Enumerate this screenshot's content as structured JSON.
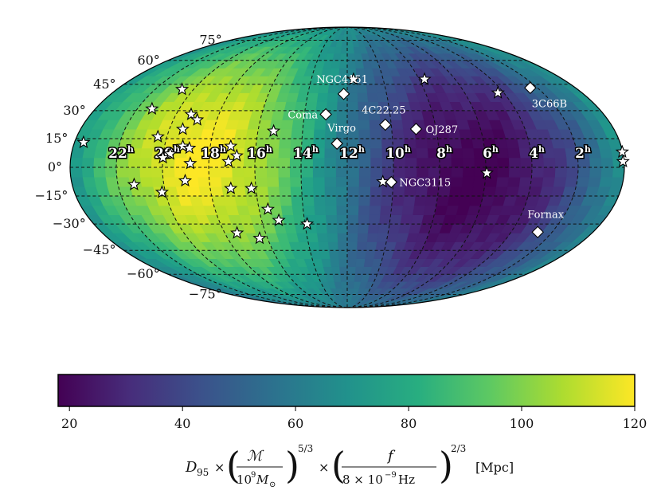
{
  "chart_data": {
    "type": "heatmap",
    "projection": "mollweide",
    "title": "",
    "colormap": "viridis",
    "color_range": [
      18,
      120
    ],
    "dec_grid_deg": [
      -75,
      -60,
      -45,
      -30,
      -15,
      0,
      15,
      30,
      45,
      60,
      75
    ],
    "ra_grid_hours": [
      22,
      20,
      18,
      16,
      14,
      12,
      10,
      8,
      6,
      4,
      2
    ],
    "dec_labels": [
      {
        "deg": 75,
        "text": "75°"
      },
      {
        "deg": 60,
        "text": "60°"
      },
      {
        "deg": 45,
        "text": "45°"
      },
      {
        "deg": 30,
        "text": "30°"
      },
      {
        "deg": 15,
        "text": "15°"
      },
      {
        "deg": 0,
        "text": "0°"
      },
      {
        "deg": -15,
        "text": "−15°"
      },
      {
        "deg": -30,
        "text": "−30°"
      },
      {
        "deg": -45,
        "text": "−45°"
      },
      {
        "deg": -60,
        "text": "−60°"
      },
      {
        "deg": -75,
        "text": "−75°"
      }
    ],
    "ra_labels": [
      {
        "hours": 22,
        "base": "22",
        "sup": "h"
      },
      {
        "hours": 20,
        "base": "20",
        "sup": "h"
      },
      {
        "hours": 18,
        "base": "18",
        "sup": "h"
      },
      {
        "hours": 16,
        "base": "16",
        "sup": "h"
      },
      {
        "hours": 14,
        "base": "14",
        "sup": "h"
      },
      {
        "hours": 12,
        "base": "12",
        "sup": "h"
      },
      {
        "hours": 10,
        "base": "10",
        "sup": "h"
      },
      {
        "hours": 8,
        "base": "8",
        "sup": "h"
      },
      {
        "hours": 6,
        "base": "6",
        "sup": "h"
      },
      {
        "hours": 4,
        "base": "4",
        "sup": "h"
      },
      {
        "hours": 2,
        "base": "2",
        "sup": "h"
      }
    ],
    "sensitivity_peak": {
      "ra_hours": 18.5,
      "dec_deg": 5,
      "value": 120
    },
    "sensitivity_min": {
      "ra_hours": 6,
      "dec_deg": 5,
      "value": 18
    },
    "named_sources": [
      {
        "name": "NGC4151",
        "ra_hours": 12.18,
        "dec_deg": 39.4
      },
      {
        "name": "Coma",
        "ra_hours": 13.0,
        "dec_deg": 28.0
      },
      {
        "name": "4C22.25",
        "ra_hours": 10.27,
        "dec_deg": 22.4
      },
      {
        "name": "Virgo",
        "ra_hours": 12.45,
        "dec_deg": 12.4
      },
      {
        "name": "OJ287",
        "ra_hours": 8.9,
        "dec_deg": 20.1
      },
      {
        "name": "NGC3115",
        "ra_hours": 10.08,
        "dec_deg": -7.7
      },
      {
        "name": "3C66B",
        "ra_hours": 2.38,
        "dec_deg": 42.9
      },
      {
        "name": "Fornax",
        "ra_hours": 2.7,
        "dec_deg": -34.5
      }
    ],
    "pulsars": [
      {
        "ra_hours": 11.65,
        "dec_deg": 48
      },
      {
        "ra_hours": 7.7,
        "dec_deg": 48
      },
      {
        "ra_hours": 4.3,
        "dec_deg": 40
      },
      {
        "ra_hours": 20.6,
        "dec_deg": 42
      },
      {
        "ra_hours": 21.3,
        "dec_deg": 31
      },
      {
        "ra_hours": 23.6,
        "dec_deg": 13
      },
      {
        "ra_hours": 0.02,
        "dec_deg": 8
      },
      {
        "ra_hours": 0.05,
        "dec_deg": 3
      },
      {
        "ra_hours": 20.4,
        "dec_deg": 16
      },
      {
        "ra_hours": 19.3,
        "dec_deg": 28
      },
      {
        "ra_hours": 18.9,
        "dec_deg": 25
      },
      {
        "ra_hours": 19.4,
        "dec_deg": 20
      },
      {
        "ra_hours": 19.2,
        "dec_deg": 11
      },
      {
        "ra_hours": 18.9,
        "dec_deg": 10
      },
      {
        "ra_hours": 19.7,
        "dec_deg": 7
      },
      {
        "ra_hours": 20.0,
        "dec_deg": 5
      },
      {
        "ra_hours": 18.8,
        "dec_deg": 2
      },
      {
        "ra_hours": 17.1,
        "dec_deg": 11
      },
      {
        "ra_hours": 16.8,
        "dec_deg": 6
      },
      {
        "ra_hours": 17.15,
        "dec_deg": 3
      },
      {
        "ra_hours": 15.3,
        "dec_deg": 19
      },
      {
        "ra_hours": 21.3,
        "dec_deg": -9
      },
      {
        "ra_hours": 20.15,
        "dec_deg": -13
      },
      {
        "ra_hours": 19.05,
        "dec_deg": -7
      },
      {
        "ra_hours": 17.1,
        "dec_deg": -11
      },
      {
        "ra_hours": 16.2,
        "dec_deg": -11
      },
      {
        "ra_hours": 15.6,
        "dec_deg": -22
      },
      {
        "ra_hours": 15.2,
        "dec_deg": -28
      },
      {
        "ra_hours": 13.9,
        "dec_deg": -30
      },
      {
        "ra_hours": 17.4,
        "dec_deg": -35
      },
      {
        "ra_hours": 16.4,
        "dec_deg": -38
      },
      {
        "ra_hours": 10.45,
        "dec_deg": -7.5
      },
      {
        "ra_hours": 5.95,
        "dec_deg": -3
      }
    ],
    "colorbar": {
      "ticks": [
        20,
        40,
        60,
        80,
        100,
        120
      ],
      "tick_labels": [
        "20",
        "40",
        "60",
        "80",
        "100",
        "120"
      ]
    },
    "xlabel": "D95 × (ℳ / 10^9 M⊙)^(5/3) × (f / 8 × 10^−9 Hz)^(2/3) [Mpc]"
  },
  "colorbar_label": {
    "symbol": "D",
    "subscript": "95",
    "times": "×",
    "frac1_num": "ℳ",
    "frac1_den_base": "10",
    "frac1_den_exp": "9",
    "frac1_den_sym": "M",
    "frac1_den_sub": "⊙",
    "exp1": "5/3",
    "frac2_num": "f",
    "frac2_den": "8 × 10",
    "frac2_den_exp": "−9",
    "frac2_den_unit": " Hz",
    "exp2": "2/3",
    "unit": "[Mpc]"
  }
}
